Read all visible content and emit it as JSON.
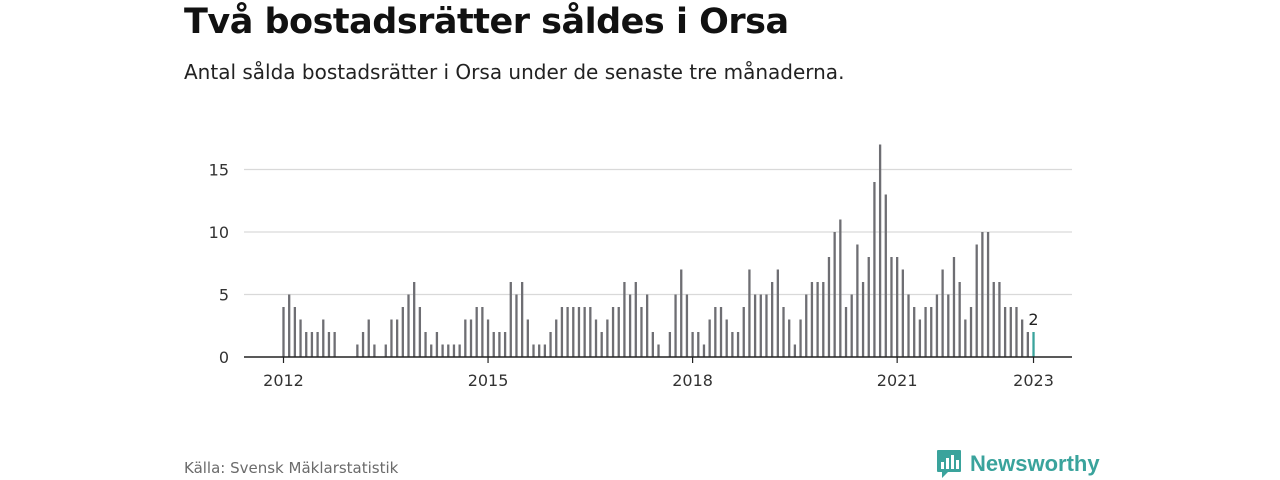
{
  "title": "Två bostadsrätter såldes i Orsa",
  "subtitle": "Antal sålda bostadsrätter i Orsa under de senaste tre månaderna.",
  "source": "Källa: Svensk Mäklarstatistik",
  "brand": {
    "name": "Newsworthy",
    "icon": "newsworthy-logo-icon",
    "color": "#3aa39c"
  },
  "chart_data": {
    "type": "bar",
    "x_start": "2012-01",
    "frequency": "monthly",
    "values": [
      4,
      5,
      4,
      3,
      2,
      2,
      2,
      3,
      2,
      2,
      null,
      null,
      null,
      1,
      2,
      3,
      1,
      null,
      1,
      3,
      3,
      4,
      5,
      6,
      4,
      2,
      1,
      2,
      1,
      1,
      1,
      1,
      3,
      3,
      4,
      4,
      3,
      2,
      2,
      2,
      6,
      5,
      6,
      3,
      1,
      1,
      1,
      2,
      3,
      4,
      4,
      4,
      4,
      4,
      4,
      3,
      2,
      3,
      4,
      4,
      6,
      5,
      6,
      4,
      5,
      2,
      1,
      null,
      2,
      5,
      7,
      5,
      2,
      2,
      1,
      3,
      4,
      4,
      3,
      2,
      2,
      4,
      7,
      5,
      5,
      5,
      6,
      7,
      4,
      3,
      1,
      3,
      5,
      6,
      6,
      6,
      8,
      10,
      11,
      4,
      5,
      9,
      6,
      8,
      14,
      17,
      13,
      8,
      8,
      7,
      5,
      4,
      3,
      4,
      4,
      5,
      7,
      5,
      8,
      6,
      3,
      4,
      9,
      10,
      10,
      6,
      6,
      4,
      4,
      4,
      3,
      2,
      2
    ],
    "highlight_last": true,
    "highlight_label": "2",
    "bar_color": "#6e6e73",
    "highlight_color": "#3aa39c",
    "x_ticks": [
      {
        "label": "2012",
        "index": 0
      },
      {
        "label": "2015",
        "index": 36
      },
      {
        "label": "2018",
        "index": 72
      },
      {
        "label": "2021",
        "index": 108
      },
      {
        "label": "2023",
        "index": 132
      }
    ],
    "y_ticks": [
      0,
      5,
      10,
      15
    ],
    "ylim": [
      0,
      17
    ],
    "xlabel": "",
    "ylabel": "",
    "grid": true,
    "legend": "none"
  }
}
